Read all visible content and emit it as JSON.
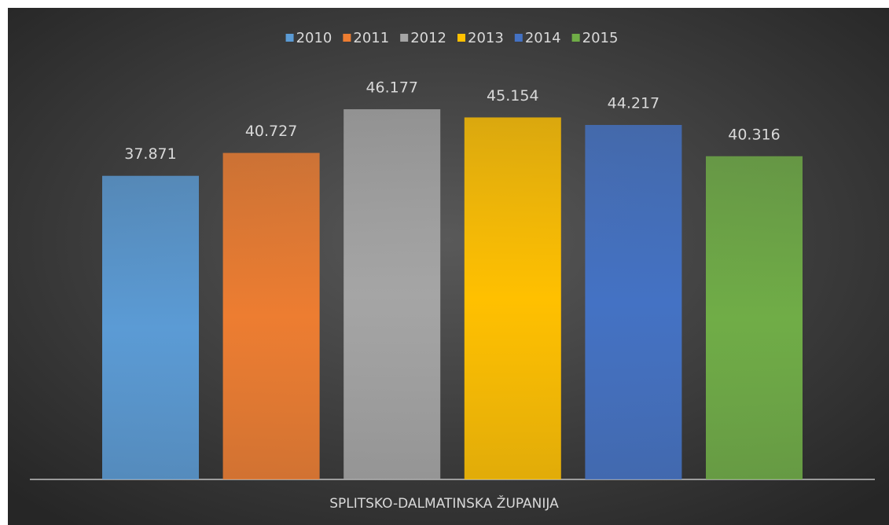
{
  "chart_data": {
    "type": "bar",
    "categories": [
      "SPLITSKO-DALMATINSKA ŽUPANIJA"
    ],
    "series": [
      {
        "name": "2010",
        "color": "#5b9bd5",
        "values": [
          37.871
        ]
      },
      {
        "name": "2011",
        "color": "#ed7d31",
        "values": [
          40.727
        ]
      },
      {
        "name": "2012",
        "color": "#a5a5a5",
        "values": [
          46.177
        ]
      },
      {
        "name": "2013",
        "color": "#ffc000",
        "values": [
          45.154
        ]
      },
      {
        "name": "2014",
        "color": "#4472c4",
        "values": [
          44.217
        ]
      },
      {
        "name": "2015",
        "color": "#70ad47",
        "values": [
          40.316
        ]
      }
    ],
    "legend": "top"
  }
}
